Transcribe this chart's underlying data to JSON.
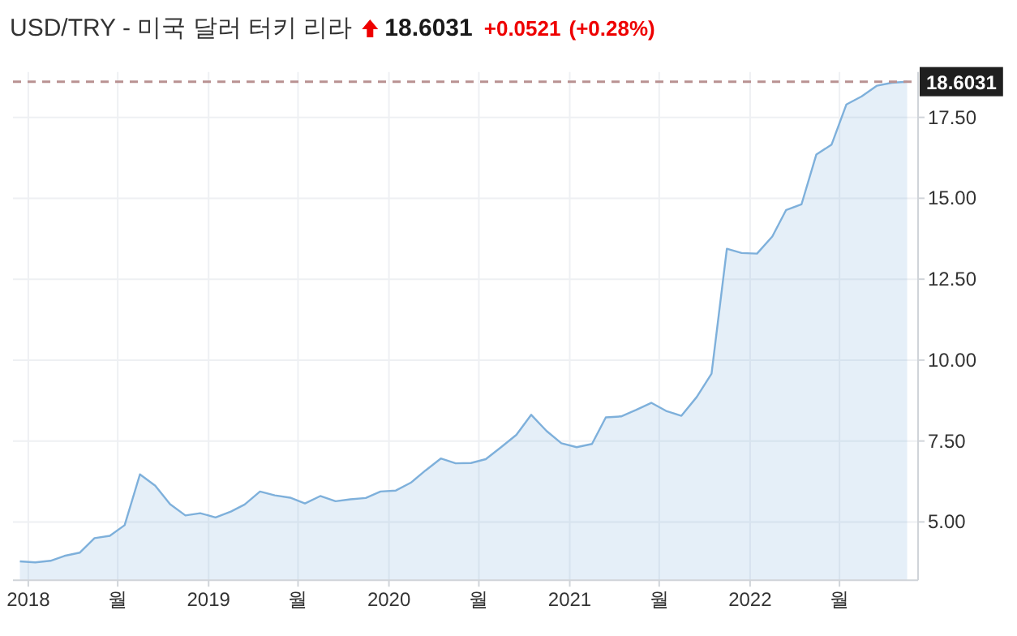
{
  "chart_data": {
    "type": "area",
    "title": "USD/TRY - 미국 달러 터키 리라",
    "annotations": [
      "18.6031",
      "+0.0521",
      "(+0.28%)"
    ],
    "x": [
      "2017-12-15",
      "2018-01-15",
      "2018-02-15",
      "2018-03-15",
      "2018-04-15",
      "2018-05-15",
      "2018-06-15",
      "2018-07-15",
      "2018-08-15",
      "2018-09-15",
      "2018-10-15",
      "2018-11-15",
      "2018-12-15",
      "2019-01-15",
      "2019-02-15",
      "2019-03-15",
      "2019-04-15",
      "2019-05-15",
      "2019-06-15",
      "2019-07-15",
      "2019-08-15",
      "2019-09-15",
      "2019-10-15",
      "2019-11-15",
      "2019-12-15",
      "2020-01-15",
      "2020-02-15",
      "2020-03-15",
      "2020-04-15",
      "2020-05-15",
      "2020-06-15",
      "2020-07-15",
      "2020-08-15",
      "2020-09-15",
      "2020-10-15",
      "2020-11-15",
      "2020-12-15",
      "2021-01-15",
      "2021-02-15",
      "2021-03-15",
      "2021-04-15",
      "2021-05-15",
      "2021-06-15",
      "2021-07-15",
      "2021-08-15",
      "2021-09-15",
      "2021-10-15",
      "2021-11-15",
      "2021-12-15",
      "2022-01-15",
      "2022-02-15",
      "2022-03-15",
      "2022-04-15",
      "2022-05-15",
      "2022-06-15",
      "2022-07-15",
      "2022-08-15",
      "2022-09-15",
      "2022-10-15",
      "2022-11-15"
    ],
    "series": [
      {
        "color": "#7eb0db",
        "values": [
          3.78,
          3.75,
          3.8,
          3.95,
          4.05,
          4.5,
          4.57,
          4.9,
          6.47,
          6.12,
          5.55,
          5.2,
          5.27,
          5.14,
          5.32,
          5.54,
          5.94,
          5.82,
          5.75,
          5.57,
          5.8,
          5.64,
          5.7,
          5.74,
          5.94,
          5.97,
          6.22,
          6.59,
          6.96,
          6.81,
          6.82,
          6.94,
          7.31,
          7.69,
          8.31,
          7.81,
          7.43,
          7.31,
          7.41,
          8.23,
          8.26,
          8.46,
          8.68,
          8.43,
          8.28,
          8.86,
          9.58,
          13.44,
          13.31,
          13.29,
          13.82,
          14.64,
          14.81,
          16.35,
          16.66,
          17.9,
          18.15,
          18.48,
          18.57,
          18.6
        ]
      }
    ],
    "xlim": [
      "2017-12-01",
      "2022-12-07"
    ],
    "xticks": [
      {
        "value": "2018-01-01",
        "label": "2018"
      },
      {
        "value": "2018-07-01",
        "label": "월"
      },
      {
        "value": "2019-01-01",
        "label": "2019"
      },
      {
        "value": "2019-07-01",
        "label": "월"
      },
      {
        "value": "2020-01-01",
        "label": "2020"
      },
      {
        "value": "2020-07-01",
        "label": "월"
      },
      {
        "value": "2021-01-01",
        "label": "2021"
      },
      {
        "value": "2021-07-01",
        "label": "월"
      },
      {
        "value": "2022-01-01",
        "label": "2022"
      },
      {
        "value": "2022-07-01",
        "label": "월"
      }
    ],
    "ylim": [
      3.2,
      18.9
    ],
    "yticks": [
      {
        "value": 5,
        "label": "5.00"
      },
      {
        "value": 7.5,
        "label": "7.50"
      },
      {
        "value": 10,
        "label": "10.00"
      },
      {
        "value": 12.5,
        "label": "12.50"
      },
      {
        "value": 15,
        "label": "15.00"
      },
      {
        "value": 17.5,
        "label": "17.50"
      }
    ],
    "grid": true,
    "ref_lines": [
      {
        "axis": "y",
        "value": 18.6031,
        "label": "18.6031",
        "color": "#b99292",
        "line_style": "dashed"
      }
    ]
  }
}
